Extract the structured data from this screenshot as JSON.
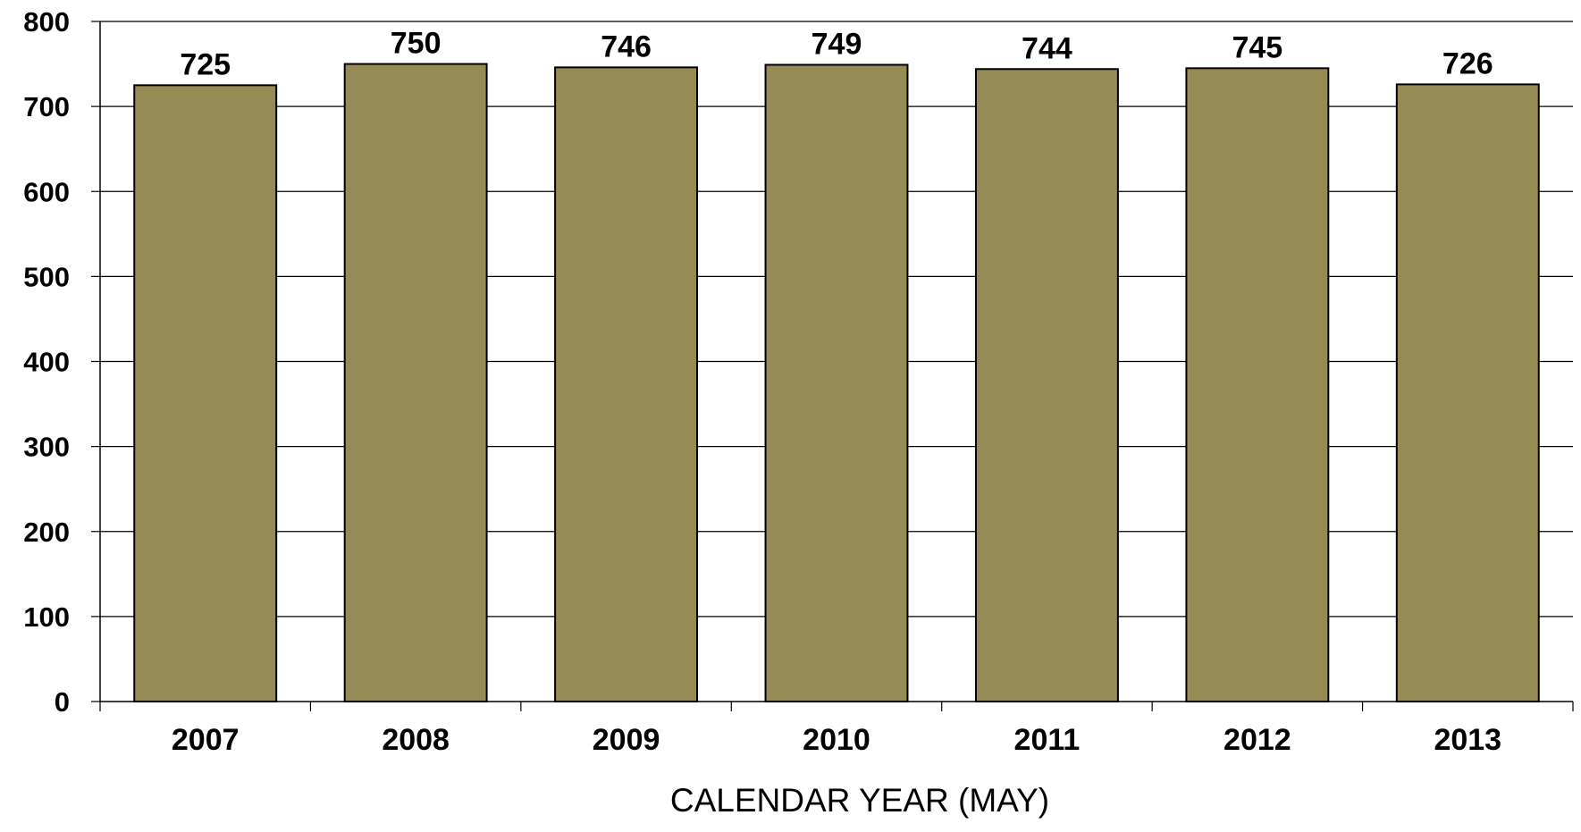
{
  "chart_data": {
    "type": "bar",
    "categories": [
      "2007",
      "2008",
      "2009",
      "2010",
      "2011",
      "2012",
      "2013"
    ],
    "values": [
      725,
      750,
      746,
      749,
      744,
      745,
      726
    ],
    "data_labels": [
      "725",
      "750",
      "746",
      "749",
      "744",
      "745",
      "726"
    ],
    "title": "",
    "xlabel": "CALENDAR  YEAR (MAY)",
    "ylabel": "",
    "ylim": [
      0,
      800
    ],
    "yticks": [
      "0",
      "100",
      "200",
      "300",
      "400",
      "500",
      "600",
      "700",
      "800"
    ],
    "grid": "horizontal",
    "legend": "none",
    "colors": {
      "bar_fill": "#968b55",
      "bar_stroke": "#000000",
      "grid": "#000000",
      "axis": "#000000"
    }
  }
}
